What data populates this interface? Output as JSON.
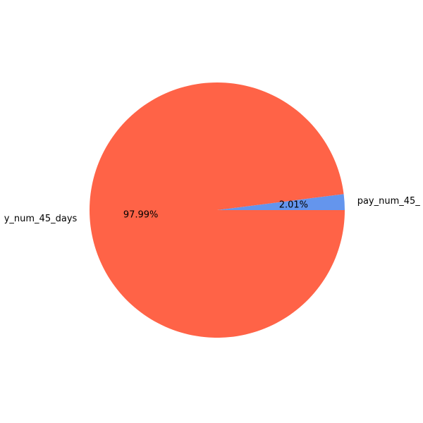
{
  "chart_data": {
    "type": "pie",
    "title": "",
    "slices": [
      {
        "label": "pay_num_45_",
        "value": 2.01,
        "pct_label": "2.01%",
        "color": "#6495ED"
      },
      {
        "label": "y_num_45_days",
        "value": 97.99,
        "pct_label": "97.99%",
        "color": "#FF6347"
      }
    ],
    "legend": "none"
  }
}
